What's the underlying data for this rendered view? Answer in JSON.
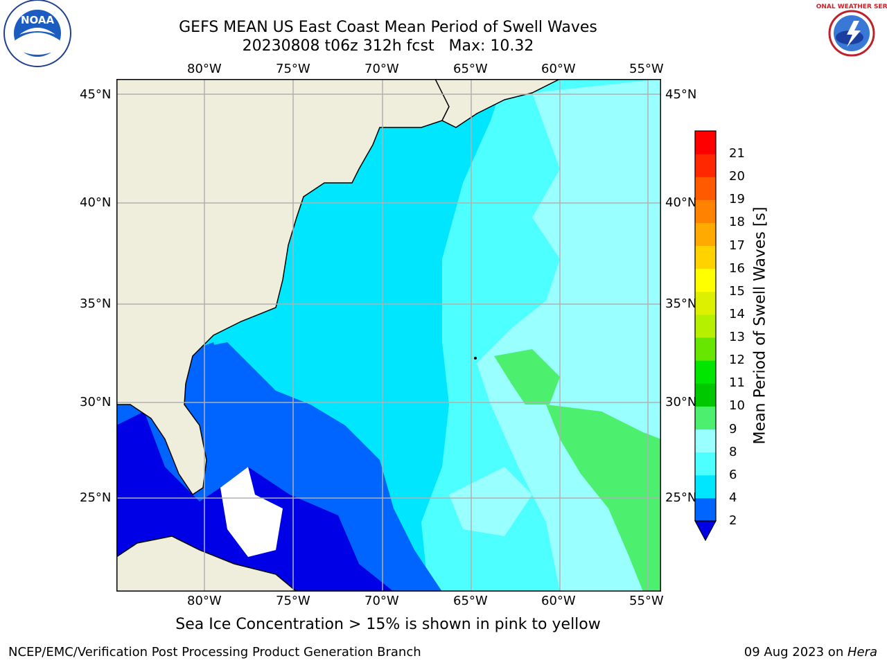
{
  "title": {
    "line1": "GEFS MEAN US East Coast Mean Period of Swell Waves",
    "line2": "20230808 t06z 312h fcst   Max: 10.32"
  },
  "map": {
    "lon_labels": [
      "80°W",
      "75°W",
      "70°W",
      "65°W",
      "60°W",
      "55°W"
    ],
    "lat_labels": [
      "45°N",
      "40°N",
      "35°N",
      "30°N",
      "25°N"
    ],
    "colors": {
      "land": "#efeedd",
      "coast": "#000000",
      "grid": "#b0b0b0"
    }
  },
  "colorbar": {
    "label": "Mean Period of Swell Waves [s]",
    "ticks": [
      "2",
      "4",
      "6",
      "8",
      "9",
      "10",
      "11",
      "12",
      "13",
      "14",
      "15",
      "16",
      "17",
      "18",
      "19",
      "20",
      "21"
    ],
    "colors": [
      "#0000e6",
      "#0064ff",
      "#00e6ff",
      "#4dffff",
      "#99ffff",
      "#4def6f",
      "#00c800",
      "#00e600",
      "#66e600",
      "#b4f000",
      "#dcf000",
      "#ffff00",
      "#ffd200",
      "#ffaa00",
      "#ff8200",
      "#ff5a00",
      "#ff2800",
      "#ff0000"
    ]
  },
  "note": "Sea Ice Concentration > 15% is shown in pink to yellow",
  "footer": {
    "left": "NCEP/EMC/Verification Post Processing Product Generation Branch",
    "right_prefix": "09 Aug 2023 on ",
    "right_emph": "Hera"
  },
  "logos": {
    "left": "NOAA",
    "right": "NATIONAL WEATHER SERVICE"
  }
}
